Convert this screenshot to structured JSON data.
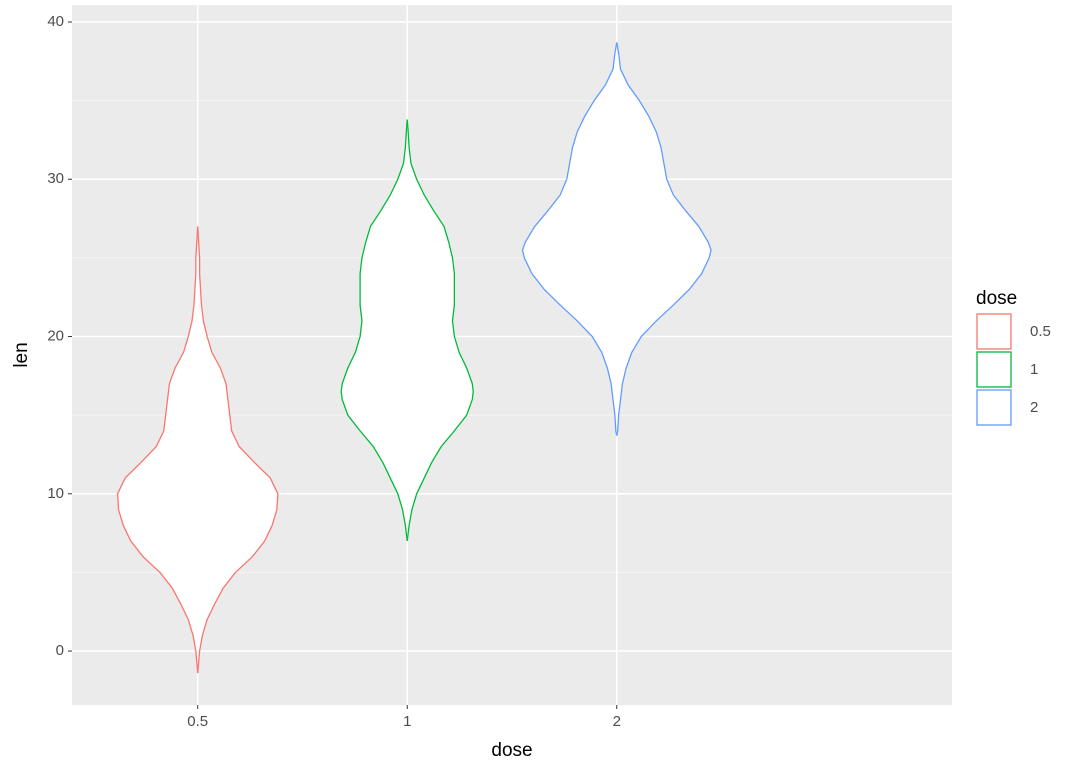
{
  "chart_data": {
    "type": "violin",
    "x_label": "dose",
    "y_label": "len",
    "legend_title": "dose",
    "legend_position": "right",
    "categories": [
      "0.5",
      "1",
      "2"
    ],
    "ylim": [
      -3.43,
      41.08
    ],
    "yticks": [
      0,
      10,
      20,
      30,
      40
    ],
    "grid": true,
    "series": [
      {
        "name": "0.5",
        "color": "#f8766d",
        "y": [
          -1.4,
          0,
          1,
          2,
          3,
          4,
          5,
          6,
          7,
          8,
          9,
          10,
          11,
          12,
          13,
          14,
          15,
          16,
          17,
          18,
          19,
          20,
          21,
          22,
          23,
          24,
          25,
          26,
          27
        ],
        "density": [
          0,
          0.02,
          0.05,
          0.1,
          0.18,
          0.27,
          0.4,
          0.58,
          0.71,
          0.79,
          0.84,
          0.85,
          0.77,
          0.6,
          0.44,
          0.36,
          0.34,
          0.32,
          0.3,
          0.24,
          0.15,
          0.1,
          0.06,
          0.04,
          0.03,
          0.02,
          0.02,
          0.01,
          0
        ]
      },
      {
        "name": "1",
        "color": "#00ba38",
        "y": [
          7,
          8,
          9,
          10,
          11,
          12,
          13,
          14,
          15,
          16,
          16.5,
          17,
          18,
          19,
          20,
          21,
          22,
          23,
          24,
          25,
          26,
          27,
          28,
          29,
          30,
          31,
          32,
          33,
          33.8
        ],
        "density": [
          0,
          0.02,
          0.05,
          0.1,
          0.18,
          0.26,
          0.36,
          0.5,
          0.63,
          0.69,
          0.7,
          0.69,
          0.63,
          0.55,
          0.5,
          0.48,
          0.5,
          0.5,
          0.5,
          0.48,
          0.44,
          0.39,
          0.28,
          0.18,
          0.1,
          0.04,
          0.02,
          0.01,
          0
        ]
      },
      {
        "name": "2",
        "color": "#619cff",
        "y": [
          13.7,
          14,
          15,
          16,
          17,
          18,
          19,
          20,
          21,
          22,
          23,
          24,
          25,
          25.5,
          26,
          27,
          28,
          29,
          30,
          31,
          32,
          33,
          34,
          35,
          36,
          37,
          38,
          38.7
        ],
        "density": [
          0,
          0.01,
          0.02,
          0.04,
          0.06,
          0.1,
          0.16,
          0.26,
          0.42,
          0.6,
          0.77,
          0.9,
          0.98,
          1,
          0.97,
          0.87,
          0.73,
          0.6,
          0.53,
          0.5,
          0.47,
          0.42,
          0.34,
          0.24,
          0.12,
          0.04,
          0.02,
          0
        ]
      }
    ]
  }
}
